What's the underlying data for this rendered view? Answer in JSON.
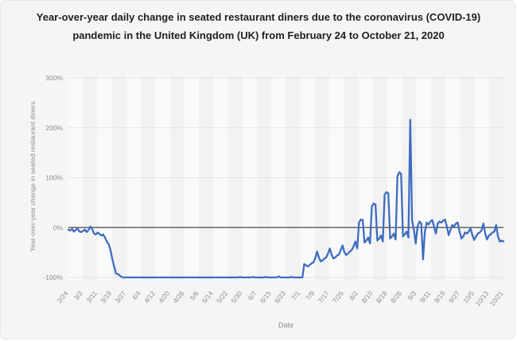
{
  "title": "Year-over-year daily change in seated restaurant diners due to the coronavirus (COVID-19) pandemic in the United Kingdom (UK) from February 24 to October 21, 2020",
  "colors": {
    "line": "#3e6cc0",
    "grid": "#e3e3e3",
    "zero_line": "#666666",
    "plot_bg": "#fafafa",
    "band": "rgba(0,0,0,0.03)",
    "tick_text": "#8d8d8d"
  },
  "chart_data": {
    "type": "line",
    "title": "Year-over-year daily change in seated restaurant diners due to the coronavirus (COVID-19) pandemic in the United Kingdom (UK) from February 24 to October 21, 2020",
    "xlabel": "Date",
    "ylabel": "Year-over-year change in seated restaurant diners",
    "unit": "percent",
    "ylim": [
      -100,
      300
    ],
    "grid": true,
    "legend": false,
    "start_date": "2/24/2020",
    "end_date": "10/21/2020",
    "x_tick_labels": [
      "2/24",
      "3/3",
      "3/11",
      "3/19",
      "3/27",
      "4/4",
      "4/12",
      "4/20",
      "4/28",
      "5/6",
      "5/14",
      "5/22",
      "5/30",
      "6/7",
      "6/15",
      "6/23",
      "7/1",
      "7/9",
      "7/17",
      "7/25",
      "8/2",
      "8/10",
      "8/18",
      "8/26",
      "9/3",
      "9/11",
      "9/19",
      "9/27",
      "10/5",
      "10/13",
      "10/21"
    ],
    "y_tick_labels": [
      "300%",
      "200%",
      "100%",
      "0%",
      "-100%"
    ],
    "y_ticks": [
      300,
      200,
      100,
      0,
      -100
    ],
    "values": [
      -4,
      -6,
      -3,
      -8,
      -5,
      -2,
      -8,
      -9,
      -7,
      -4,
      -9,
      -5,
      2,
      -3,
      -12,
      -14,
      -10,
      -13,
      -16,
      -14,
      -20,
      -28,
      -33,
      -45,
      -63,
      -78,
      -92,
      -93,
      -96,
      -99,
      -100,
      -100,
      -100,
      -100,
      -100,
      -100,
      -100,
      -100,
      -100,
      -100,
      -100,
      -100,
      -100,
      -100,
      -100,
      -100,
      -100,
      -100,
      -100,
      -100,
      -100,
      -100,
      -100,
      -100,
      -100,
      -100,
      -100,
      -100,
      -100,
      -100,
      -100,
      -100,
      -100,
      -100,
      -100,
      -100,
      -100,
      -100,
      -100,
      -100,
      -100,
      -100,
      -100,
      -100,
      -100,
      -100,
      -100,
      -100,
      -100,
      -100,
      -100,
      -100,
      -100,
      -100,
      -100,
      -100,
      -100,
      -100,
      -100,
      -100,
      -100,
      -100,
      -100,
      -100,
      -99,
      -100,
      -100,
      -100,
      -100,
      -100,
      -100,
      -99,
      -100,
      -100,
      -100,
      -100,
      -100,
      -100,
      -99,
      -100,
      -100,
      -100,
      -100,
      -100,
      -100,
      -98,
      -100,
      -100,
      -100,
      -100,
      -100,
      -100,
      -99,
      -100,
      -100,
      -100,
      -100,
      -100,
      -100,
      -73,
      -76,
      -78,
      -75,
      -72,
      -70,
      -62,
      -48,
      -60,
      -68,
      -66,
      -62,
      -60,
      -52,
      -42,
      -55,
      -62,
      -60,
      -56,
      -54,
      -45,
      -36,
      -50,
      -55,
      -52,
      -48,
      -45,
      -38,
      -28,
      -42,
      10,
      16,
      15,
      -30,
      -26,
      -20,
      -32,
      42,
      48,
      46,
      -26,
      -22,
      -16,
      -28,
      66,
      71,
      69,
      -22,
      -18,
      -12,
      -24,
      103,
      111,
      108,
      -18,
      -14,
      -8,
      -20,
      216,
      14,
      -5,
      -32,
      2,
      12,
      8,
      -64,
      -8,
      10,
      6,
      12,
      15,
      2,
      -12,
      8,
      12,
      10,
      14,
      16,
      2,
      -15,
      -5,
      5,
      2,
      8,
      10,
      -8,
      -22,
      -18,
      -10,
      -12,
      -8,
      -2,
      -15,
      -25,
      -18,
      -12,
      -10,
      -6,
      8,
      -12,
      -24,
      -16,
      -14,
      -10,
      -8,
      5,
      -18,
      -28,
      -26,
      -28
    ]
  }
}
